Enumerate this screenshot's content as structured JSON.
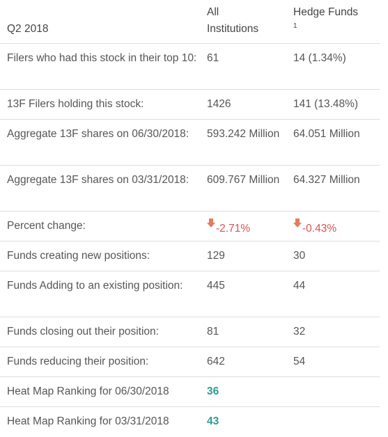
{
  "header": {
    "period": "Q2 2018",
    "col_all": "All Institutions",
    "col_all_line1": "All",
    "col_all_line2": "Institutions",
    "col_hedge": "Hedge Funds",
    "col_hedge_footnote": "1"
  },
  "rows": [
    {
      "label": "Filers who had this stock in their top 10:",
      "all": "61",
      "hedge": "14 (1.34%)"
    },
    {
      "label": "13F Filers holding this stock:",
      "all": "1426",
      "hedge": "141 (13.48%)"
    },
    {
      "label": "Aggregate 13F shares on 06/30/2018:",
      "all": "593.242 Million",
      "hedge": "64.051 Million"
    },
    {
      "label": "Aggregate 13F shares on 03/31/2018:",
      "all": "609.767 Million",
      "hedge": "64.327 Million"
    },
    {
      "label": "Percent change:",
      "all": "-2.71%",
      "hedge": "-0.43%"
    },
    {
      "label": "Funds creating new positions:",
      "all": "129",
      "hedge": "30"
    },
    {
      "label": "Funds Adding to an existing position:",
      "all": "445",
      "hedge": "44"
    },
    {
      "label": "Funds closing out their position:",
      "all": "81",
      "hedge": "32"
    },
    {
      "label": "Funds reducing their position:",
      "all": "642",
      "hedge": "54"
    },
    {
      "label": "Heat Map Ranking for 06/30/2018",
      "all": "36",
      "hedge": ""
    },
    {
      "label": "Heat Map Ranking for 03/31/2018",
      "all": "43",
      "hedge": ""
    }
  ],
  "icons": {
    "percent_change_indicator": "down-arrow-icon"
  },
  "colors": {
    "negative": "#d9534f",
    "arrow": "#e8795f",
    "rank": "#2a9d8f",
    "divider": "#dddddd"
  }
}
